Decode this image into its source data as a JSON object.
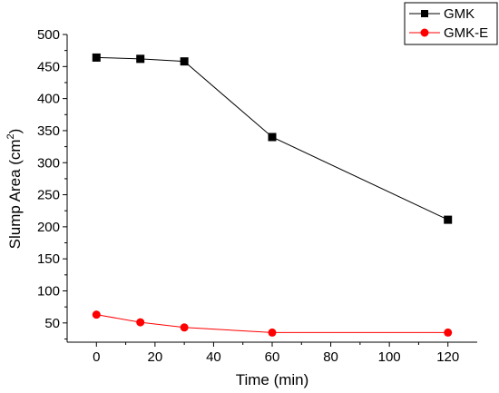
{
  "chart_data": {
    "type": "line",
    "xlabel": "Time (min)",
    "ylabel_main": "Slump Area (cm",
    "ylabel_sup": "2",
    "ylabel_close": ")",
    "xlim": [
      -10,
      130
    ],
    "ylim": [
      20,
      500
    ],
    "xticks": [
      0,
      20,
      40,
      60,
      80,
      100,
      120
    ],
    "yticks": [
      50,
      100,
      150,
      200,
      250,
      300,
      350,
      400,
      450,
      500
    ],
    "grid": false,
    "legend_position": "top-right",
    "series": [
      {
        "name": "GMK",
        "color": "#000000",
        "marker": "square",
        "x": [
          0,
          15,
          30,
          60,
          120
        ],
        "y": [
          464,
          462,
          458,
          340,
          211
        ]
      },
      {
        "name": "GMK-E",
        "color": "#ff0000",
        "marker": "circle",
        "x": [
          0,
          15,
          30,
          60,
          120
        ],
        "y": [
          63,
          51,
          43,
          35,
          35
        ]
      }
    ]
  }
}
